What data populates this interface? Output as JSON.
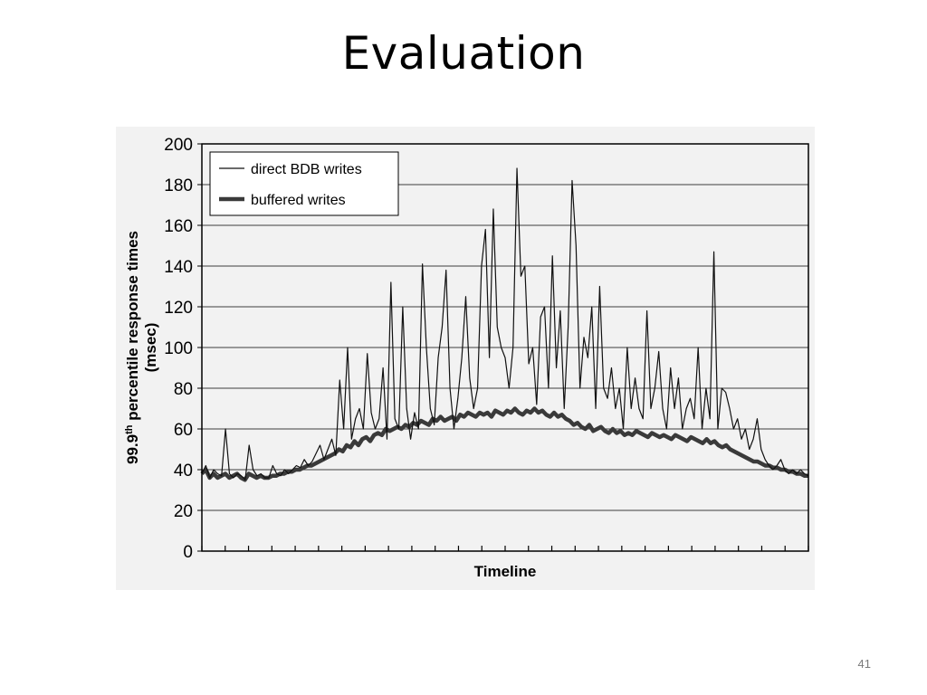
{
  "slide": {
    "title": "Evaluation",
    "page_number": "41"
  },
  "chart_data": {
    "type": "line",
    "title": "",
    "xlabel": "Timeline",
    "ylabel_line1": "99.9",
    "ylabel_sup": "th",
    "ylabel_line1_rest": " percentile response times",
    "ylabel_line2": "(msec)",
    "ylim": [
      0,
      200
    ],
    "yticks": [
      0,
      20,
      40,
      60,
      80,
      100,
      120,
      140,
      160,
      180,
      200
    ],
    "x_tick_count": 26,
    "grid": true,
    "legend_position": "top-left",
    "series": [
      {
        "name": "direct BDB writes",
        "color": "#111111",
        "style": "thin",
        "values": [
          38,
          42,
          36,
          40,
          38,
          37,
          60,
          38,
          36,
          38,
          37,
          35,
          52,
          40,
          37,
          38,
          36,
          36,
          42,
          38,
          37,
          40,
          38,
          40,
          42,
          41,
          45,
          42,
          44,
          48,
          52,
          45,
          50,
          55,
          47,
          84,
          60,
          100,
          55,
          65,
          70,
          60,
          97,
          68,
          60,
          65,
          90,
          55,
          132,
          65,
          60,
          120,
          70,
          55,
          68,
          60,
          141,
          100,
          70,
          62,
          95,
          110,
          138,
          80,
          60,
          75,
          95,
          125,
          85,
          70,
          80,
          140,
          158,
          95,
          168,
          110,
          100,
          95,
          80,
          100,
          188,
          135,
          140,
          92,
          100,
          72,
          115,
          120,
          80,
          145,
          90,
          118,
          70,
          110,
          182,
          150,
          80,
          105,
          95,
          120,
          70,
          130,
          80,
          75,
          90,
          70,
          80,
          60,
          100,
          70,
          85,
          70,
          65,
          118,
          70,
          80,
          98,
          70,
          60,
          90,
          70,
          85,
          60,
          70,
          75,
          65,
          100,
          60,
          80,
          65,
          147,
          60,
          80,
          78,
          70,
          60,
          65,
          55,
          60,
          50,
          55,
          65,
          50,
          45,
          42,
          40,
          42,
          45,
          40,
          38,
          40,
          38,
          40,
          38,
          37
        ]
      },
      {
        "name": "buffered writes",
        "color": "#3a3a3a",
        "style": "thick",
        "values": [
          38,
          40,
          36,
          38,
          36,
          37,
          38,
          36,
          37,
          38,
          36,
          35,
          38,
          37,
          36,
          37,
          36,
          36,
          37,
          37,
          38,
          38,
          39,
          39,
          40,
          40,
          41,
          42,
          42,
          43,
          44,
          45,
          46,
          47,
          48,
          50,
          49,
          52,
          51,
          54,
          52,
          55,
          56,
          54,
          57,
          58,
          57,
          60,
          59,
          60,
          61,
          60,
          62,
          61,
          63,
          62,
          64,
          63,
          62,
          65,
          64,
          66,
          64,
          65,
          66,
          64,
          67,
          66,
          68,
          67,
          66,
          68,
          67,
          68,
          66,
          69,
          68,
          67,
          69,
          68,
          70,
          68,
          67,
          69,
          68,
          70,
          68,
          69,
          67,
          66,
          68,
          66,
          67,
          65,
          64,
          62,
          63,
          61,
          60,
          62,
          59,
          60,
          61,
          59,
          58,
          60,
          58,
          59,
          57,
          58,
          57,
          59,
          58,
          57,
          56,
          58,
          57,
          56,
          57,
          56,
          55,
          57,
          56,
          55,
          54,
          56,
          55,
          54,
          53,
          55,
          53,
          54,
          52,
          51,
          52,
          50,
          49,
          48,
          47,
          46,
          45,
          44,
          44,
          43,
          42,
          42,
          41,
          41,
          40,
          40,
          39,
          39,
          38,
          38,
          37,
          37
        ]
      }
    ]
  }
}
